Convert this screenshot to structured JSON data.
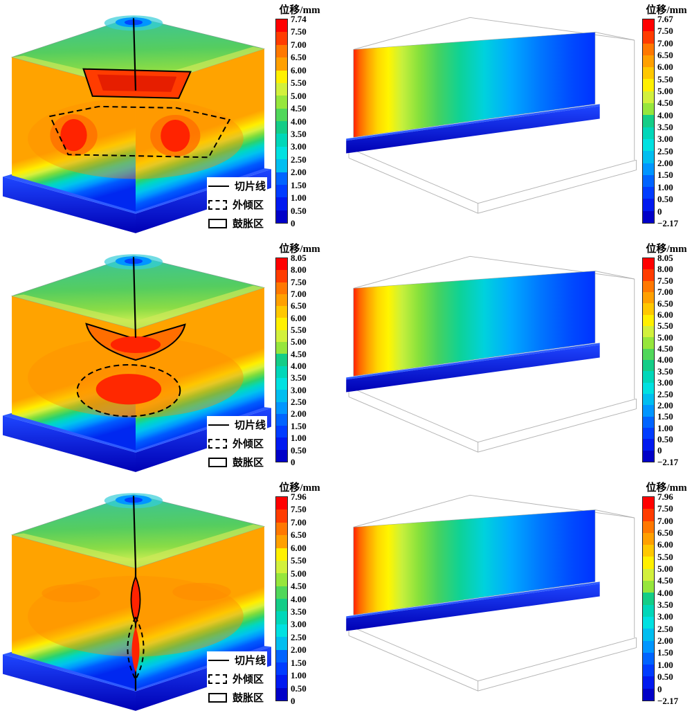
{
  "palette": [
    "#ff0000",
    "#ff3c00",
    "#ff7800",
    "#ffa000",
    "#ffc800",
    "#fff000",
    "#d2f03c",
    "#96e63c",
    "#50d75a",
    "#14cd87",
    "#00d7b9",
    "#00e1e1",
    "#00bef0",
    "#0096ff",
    "#0064ff",
    "#003cff",
    "#0019f0",
    "#0000c8"
  ],
  "panels": [
    {
      "id": "block-view-row1",
      "colorbar": {
        "title": "位移/mm",
        "ticks": [
          "7.74",
          "7.50",
          "7.00",
          "6.50",
          "6.00",
          "5.50",
          "5.00",
          "4.50",
          "4.00",
          "3.50",
          "3.00",
          "2.50",
          "2.00",
          "1.50",
          "1.00",
          "0.50",
          "0"
        ]
      },
      "legend": [
        {
          "label": "切片线"
        },
        {
          "label": "外倾区"
        },
        {
          "label": "鼓胀区"
        }
      ]
    },
    {
      "id": "slice-view-row1",
      "colorbar": {
        "title": "位移/mm",
        "ticks": [
          "7.67",
          "7.50",
          "7.00",
          "6.50",
          "6.00",
          "5.50",
          "5.00",
          "4.50",
          "4.00",
          "3.50",
          "3.00",
          "2.50",
          "2.00",
          "1.50",
          "1.00",
          "0.50",
          "0",
          "−2.17"
        ]
      }
    },
    {
      "id": "block-view-row2",
      "colorbar": {
        "title": "位移/mm",
        "ticks": [
          "8.05",
          "8.00",
          "7.50",
          "7.00",
          "6.50",
          "6.00",
          "5.50",
          "5.00",
          "4.50",
          "4.00",
          "3.50",
          "3.00",
          "2.50",
          "2.00",
          "1.50",
          "1.00",
          "0.50",
          "0"
        ]
      },
      "legend": [
        {
          "label": "切片线"
        },
        {
          "label": "外倾区"
        },
        {
          "label": "鼓胀区"
        }
      ]
    },
    {
      "id": "slice-view-row2",
      "colorbar": {
        "title": "位移/mm",
        "ticks": [
          "8.05",
          "8.00",
          "7.50",
          "7.00",
          "6.50",
          "6.00",
          "5.50",
          "5.00",
          "4.50",
          "4.00",
          "3.50",
          "3.00",
          "2.50",
          "2.00",
          "1.50",
          "1.00",
          "0.50",
          "0",
          "−2.17"
        ]
      }
    },
    {
      "id": "block-view-row3",
      "colorbar": {
        "title": "位移/mm",
        "ticks": [
          "7.96",
          "7.50",
          "7.00",
          "6.50",
          "6.00",
          "5.50",
          "5.00",
          "4.50",
          "4.00",
          "3.50",
          "3.00",
          "2.50",
          "2.00",
          "1.50",
          "1.00",
          "0.50",
          "0"
        ]
      },
      "legend": [
        {
          "label": "切片线"
        },
        {
          "label": "外倾区"
        },
        {
          "label": "鼓胀区"
        }
      ]
    },
    {
      "id": "slice-view-row3",
      "colorbar": {
        "title": "位移/mm",
        "ticks": [
          "7.96",
          "7.50",
          "7.00",
          "6.50",
          "6.00",
          "5.50",
          "5.00",
          "4.50",
          "4.00",
          "3.50",
          "3.00",
          "2.50",
          "2.00",
          "1.50",
          "1.00",
          "0.50",
          "0",
          "−2.17"
        ]
      }
    }
  ],
  "chart_data": [
    {
      "type": "heatmap",
      "view": "3d-block-displacement-contour",
      "title": "位移/mm",
      "units": "mm",
      "min": 0,
      "max": 7.74,
      "colorbar_ticks": [
        7.74,
        7.5,
        7.0,
        6.5,
        6.0,
        5.5,
        5.0,
        4.5,
        4.0,
        3.5,
        3.0,
        2.5,
        2.0,
        1.5,
        1.0,
        0.5,
        0
      ],
      "annotations": [
        "切片线",
        "外倾区",
        "鼓胀区"
      ],
      "legend_position": "bottom-right"
    },
    {
      "type": "heatmap",
      "view": "3d-slice-displacement-contour",
      "title": "位移/mm",
      "units": "mm",
      "min": -2.17,
      "max": 7.67,
      "colorbar_ticks": [
        7.67,
        7.5,
        7.0,
        6.5,
        6.0,
        5.5,
        5.0,
        4.5,
        4.0,
        3.5,
        3.0,
        2.5,
        2.0,
        1.5,
        1.0,
        0.5,
        0,
        -2.17
      ]
    },
    {
      "type": "heatmap",
      "view": "3d-block-displacement-contour",
      "title": "位移/mm",
      "units": "mm",
      "min": 0,
      "max": 8.05,
      "colorbar_ticks": [
        8.05,
        8.0,
        7.5,
        7.0,
        6.5,
        6.0,
        5.5,
        5.0,
        4.5,
        4.0,
        3.5,
        3.0,
        2.5,
        2.0,
        1.5,
        1.0,
        0.5,
        0
      ],
      "annotations": [
        "切片线",
        "外倾区",
        "鼓胀区"
      ],
      "legend_position": "bottom-right"
    },
    {
      "type": "heatmap",
      "view": "3d-slice-displacement-contour",
      "title": "位移/mm",
      "units": "mm",
      "min": -2.17,
      "max": 8.05,
      "colorbar_ticks": [
        8.05,
        8.0,
        7.5,
        7.0,
        6.5,
        6.0,
        5.5,
        5.0,
        4.5,
        4.0,
        3.5,
        3.0,
        2.5,
        2.0,
        1.5,
        1.0,
        0.5,
        0,
        -2.17
      ]
    },
    {
      "type": "heatmap",
      "view": "3d-block-displacement-contour",
      "title": "位移/mm",
      "units": "mm",
      "min": 0,
      "max": 7.96,
      "colorbar_ticks": [
        7.96,
        7.5,
        7.0,
        6.5,
        6.0,
        5.5,
        5.0,
        4.5,
        4.0,
        3.5,
        3.0,
        2.5,
        2.0,
        1.5,
        1.0,
        0.5,
        0
      ],
      "annotations": [
        "切片线",
        "外倾区",
        "鼓胀区"
      ],
      "legend_position": "bottom-right"
    },
    {
      "type": "heatmap",
      "view": "3d-slice-displacement-contour",
      "title": "位移/mm",
      "units": "mm",
      "min": -2.17,
      "max": 7.96,
      "colorbar_ticks": [
        7.96,
        7.5,
        7.0,
        6.5,
        6.0,
        5.5,
        5.0,
        4.5,
        4.0,
        3.5,
        3.0,
        2.5,
        2.0,
        1.5,
        1.0,
        0.5,
        0,
        -2.17
      ]
    }
  ]
}
